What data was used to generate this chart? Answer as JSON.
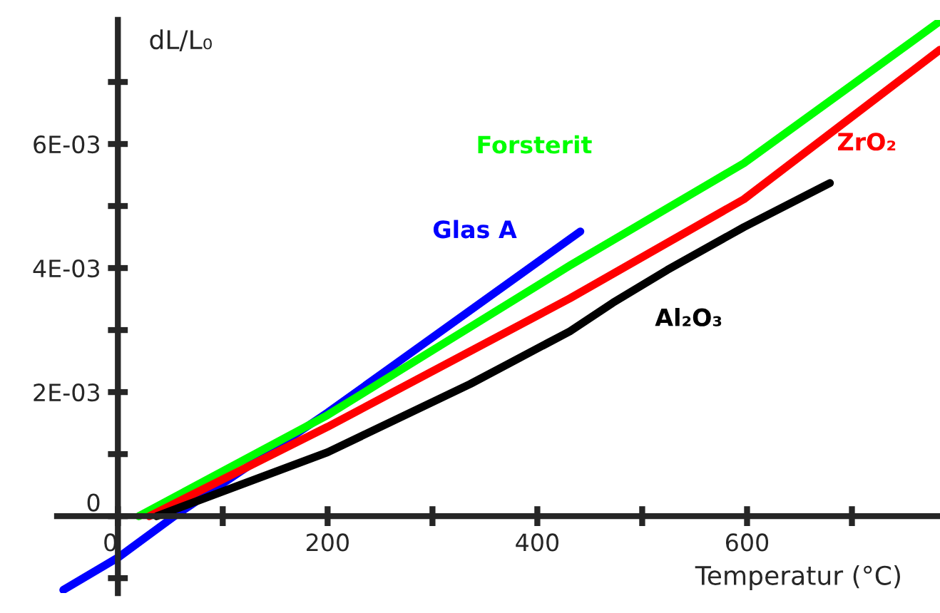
{
  "chart_data": {
    "type": "line",
    "xlabel": "Temperatur (°C)",
    "ylabel": "dL/L₀",
    "xlim": [
      -58,
      784
    ],
    "ylim": [
      -0.00124,
      0.008
    ],
    "xticks": [
      0,
      {
        "value": 100,
        "label": null
      },
      200,
      {
        "value": 300,
        "label": null
      },
      400,
      {
        "value": 500,
        "label": null
      },
      600,
      {
        "value": 700,
        "label": null
      }
    ],
    "yticks": [
      {
        "value": 0,
        "label": "0"
      },
      {
        "value": 0.001,
        "label": null
      },
      {
        "value": 0.002,
        "label": "2E-03"
      },
      {
        "value": 0.003,
        "label": null
      },
      {
        "value": 0.004,
        "label": "4E-03"
      },
      {
        "value": 0.005,
        "label": null
      },
      {
        "value": 0.006,
        "label": "6E-03"
      },
      {
        "value": 0.007,
        "label": null
      },
      {
        "value": -0.001,
        "label": null
      }
    ],
    "grid": false,
    "marker": "none",
    "line_style": "solid",
    "series": [
      {
        "name": "Glas A",
        "color": "#0000ff",
        "x": [
          -52,
          0,
          54,
          200,
          441
        ],
        "values": [
          -0.00119,
          -0.00067,
          0,
          0.00167,
          0.00459
        ]
      },
      {
        "name": "Forsterit",
        "color": "#00ff00",
        "x": [
          20,
          200,
          431,
          597,
          784
        ],
        "values": [
          0,
          0.00163,
          0.00404,
          0.00569,
          0.00798
        ]
      },
      {
        "name": "ZrO₂",
        "color": "#ff0000",
        "x": [
          30,
          200,
          431,
          597,
          784
        ],
        "values": [
          0,
          0.00144,
          0.00351,
          0.00511,
          0.00752
        ]
      },
      {
        "name": "Al₂O₃",
        "color": "#000000",
        "x": [
          37,
          200,
          336,
          431,
          472,
          524,
          597,
          679
        ],
        "values": [
          0,
          0.00103,
          0.00213,
          0.00298,
          0.00344,
          0.00397,
          0.00466,
          0.00537
        ]
      }
    ]
  }
}
